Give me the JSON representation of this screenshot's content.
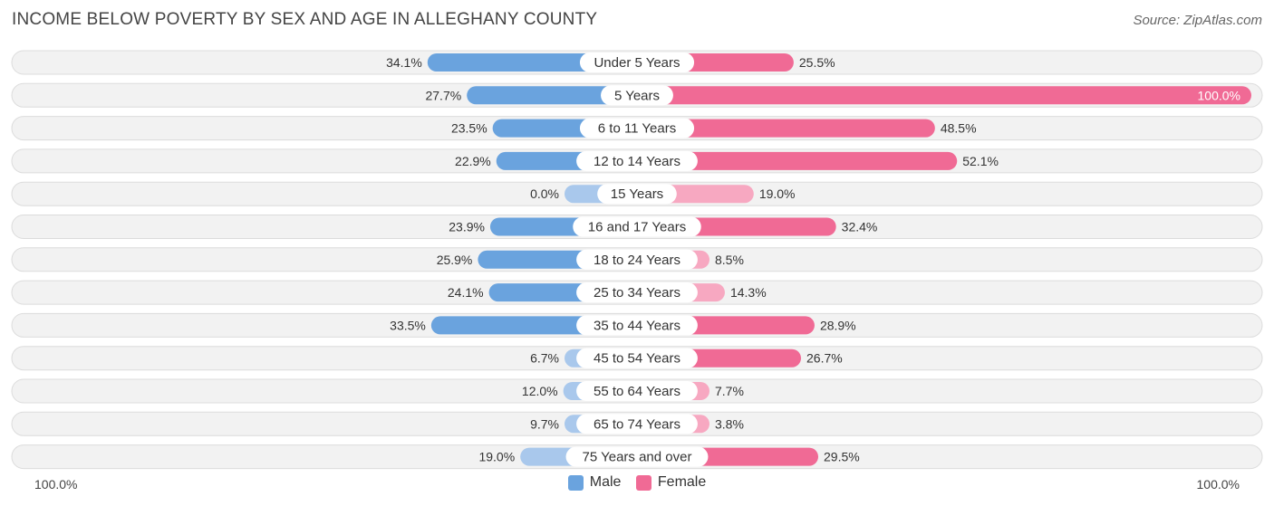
{
  "title": "INCOME BELOW POVERTY BY SEX AND AGE IN ALLEGHANY COUNTY",
  "source": "Source: ZipAtlas.com",
  "colors": {
    "male_strong": "#6aa3de",
    "male_light": "#a9c8ec",
    "female_strong": "#f06a95",
    "female_light": "#f7a8c1"
  },
  "axis": {
    "left_label": "100.0%",
    "right_label": "100.0%"
  },
  "legend": {
    "male": "Male",
    "female": "Female"
  },
  "chart_data": {
    "type": "bar",
    "orientation": "horizontal-diverging",
    "categories": [
      "Under 5 Years",
      "5 Years",
      "6 to 11 Years",
      "12 to 14 Years",
      "15 Years",
      "16 and 17 Years",
      "18 to 24 Years",
      "25 to 34 Years",
      "35 to 44 Years",
      "45 to 54 Years",
      "55 to 64 Years",
      "65 to 74 Years",
      "75 Years and over"
    ],
    "series": [
      {
        "name": "Male",
        "values": [
          34.1,
          27.7,
          23.5,
          22.9,
          0.0,
          23.9,
          25.9,
          24.1,
          33.5,
          6.7,
          12.0,
          9.7,
          19.0
        ],
        "labels": [
          "34.1%",
          "27.7%",
          "23.5%",
          "22.9%",
          "0.0%",
          "23.9%",
          "25.9%",
          "24.1%",
          "33.5%",
          "6.7%",
          "12.0%",
          "9.7%",
          "19.0%"
        ]
      },
      {
        "name": "Female",
        "values": [
          25.5,
          100.0,
          48.5,
          52.1,
          19.0,
          32.4,
          8.5,
          14.3,
          28.9,
          26.7,
          7.7,
          3.8,
          29.5
        ],
        "labels": [
          "25.5%",
          "100.0%",
          "48.5%",
          "52.1%",
          "19.0%",
          "32.4%",
          "8.5%",
          "14.3%",
          "28.9%",
          "26.7%",
          "7.7%",
          "3.8%",
          "29.5%"
        ]
      }
    ],
    "xlim": [
      -100,
      100
    ],
    "legend_position": "bottom-center"
  }
}
